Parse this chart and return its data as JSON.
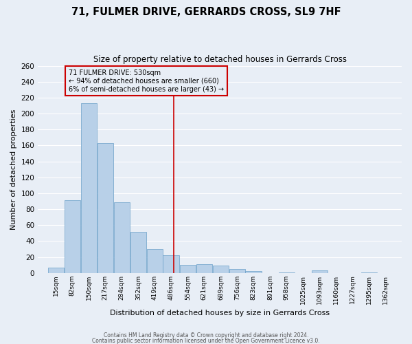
{
  "title": "71, FULMER DRIVE, GERRARDS CROSS, SL9 7HF",
  "subtitle": "Size of property relative to detached houses in Gerrards Cross",
  "xlabel": "Distribution of detached houses by size in Gerrards Cross",
  "ylabel": "Number of detached properties",
  "bin_labels": [
    "15sqm",
    "82sqm",
    "150sqm",
    "217sqm",
    "284sqm",
    "352sqm",
    "419sqm",
    "486sqm",
    "554sqm",
    "621sqm",
    "689sqm",
    "756sqm",
    "823sqm",
    "891sqm",
    "958sqm",
    "1025sqm",
    "1093sqm",
    "1160sqm",
    "1227sqm",
    "1295sqm",
    "1362sqm"
  ],
  "bin_edges": [
    15,
    82,
    150,
    217,
    284,
    352,
    419,
    486,
    554,
    621,
    689,
    756,
    823,
    891,
    958,
    1025,
    1093,
    1160,
    1227,
    1295,
    1362
  ],
  "bar_heights": [
    7,
    91,
    213,
    163,
    89,
    52,
    30,
    22,
    10,
    11,
    9,
    5,
    2,
    0,
    1,
    0,
    3,
    0,
    0,
    1
  ],
  "bar_color": "#b8d0e8",
  "bar_edgecolor": "#6a9fc8",
  "bg_color": "#e8eef6",
  "grid_color": "#ffffff",
  "vline_x": 530,
  "vline_color": "#cc0000",
  "annotation_line1": "71 FULMER DRIVE: 530sqm",
  "annotation_line2": "← 94% of detached houses are smaller (660)",
  "annotation_line3": "6% of semi-detached houses are larger (43) →",
  "annotation_box_color": "#cc0000",
  "ylim": [
    0,
    260
  ],
  "yticks": [
    0,
    20,
    40,
    60,
    80,
    100,
    120,
    140,
    160,
    180,
    200,
    220,
    240,
    260
  ],
  "footer1": "Contains HM Land Registry data © Crown copyright and database right 2024.",
  "footer2": "Contains public sector information licensed under the Open Government Licence v3.0."
}
